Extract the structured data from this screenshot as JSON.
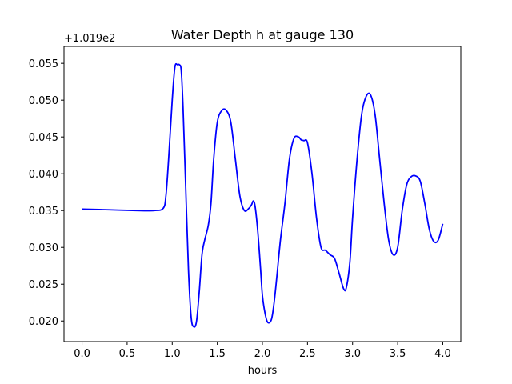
{
  "chart_data": {
    "type": "line",
    "title": "Water Depth h at gauge 130",
    "xlabel": "hours",
    "ylabel": "",
    "y_offset_label": "+1.019e2",
    "y_offset": 101.9,
    "xlim": [
      -0.2,
      4.2
    ],
    "ylim": [
      0.0172,
      0.0573
    ],
    "x_ticks": [
      0.0,
      0.5,
      1.0,
      1.5,
      2.0,
      2.5,
      3.0,
      3.5,
      4.0
    ],
    "x_tick_labels": [
      "0.0",
      "0.5",
      "1.0",
      "1.5",
      "2.0",
      "2.5",
      "3.0",
      "3.5",
      "4.0"
    ],
    "y_ticks": [
      0.02,
      0.025,
      0.03,
      0.035,
      0.04,
      0.045,
      0.05,
      0.055
    ],
    "y_tick_labels": [
      "0.020",
      "0.025",
      "0.030",
      "0.035",
      "0.040",
      "0.045",
      "0.050",
      "0.055"
    ],
    "grid": false,
    "line_color": "#0000ff",
    "series": [
      {
        "x": [
          0.0,
          0.3,
          0.6,
          0.8,
          0.9,
          0.93,
          0.96,
          1.0,
          1.03,
          1.06,
          1.08,
          1.1,
          1.12,
          1.15,
          1.18,
          1.21,
          1.24,
          1.27,
          1.3,
          1.33,
          1.36,
          1.4,
          1.43,
          1.46,
          1.5,
          1.55,
          1.6,
          1.65,
          1.7,
          1.75,
          1.8,
          1.85,
          1.88,
          1.9,
          1.92,
          1.95,
          1.98,
          2.0,
          2.03,
          2.06,
          2.1,
          2.13,
          2.16,
          2.2,
          2.25,
          2.3,
          2.35,
          2.4,
          2.43,
          2.46,
          2.5,
          2.55,
          2.6,
          2.65,
          2.7,
          2.75,
          2.8,
          2.85,
          2.9,
          2.93,
          2.97,
          3.0,
          3.05,
          3.1,
          3.15,
          3.2,
          3.25,
          3.3,
          3.35,
          3.4,
          3.45,
          3.5,
          3.55,
          3.6,
          3.65,
          3.7,
          3.75,
          3.8,
          3.85,
          3.9,
          3.95,
          4.0
        ],
        "y": [
          0.0352,
          0.0351,
          0.035,
          0.035,
          0.0353,
          0.037,
          0.042,
          0.05,
          0.0545,
          0.0548,
          0.0548,
          0.054,
          0.049,
          0.038,
          0.027,
          0.0205,
          0.0192,
          0.02,
          0.024,
          0.029,
          0.031,
          0.033,
          0.036,
          0.042,
          0.047,
          0.0486,
          0.0486,
          0.047,
          0.042,
          0.037,
          0.035,
          0.0353,
          0.0358,
          0.0363,
          0.0355,
          0.032,
          0.027,
          0.0235,
          0.021,
          0.0198,
          0.0202,
          0.0225,
          0.026,
          0.031,
          0.036,
          0.042,
          0.0448,
          0.045,
          0.0446,
          0.0445,
          0.0442,
          0.04,
          0.034,
          0.03,
          0.0296,
          0.029,
          0.0285,
          0.0265,
          0.0244,
          0.0245,
          0.028,
          0.034,
          0.042,
          0.048,
          0.0505,
          0.0507,
          0.048,
          0.042,
          0.036,
          0.031,
          0.029,
          0.03,
          0.035,
          0.0385,
          0.0396,
          0.0397,
          0.039,
          0.036,
          0.0325,
          0.0308,
          0.031,
          0.0332
        ]
      }
    ]
  }
}
